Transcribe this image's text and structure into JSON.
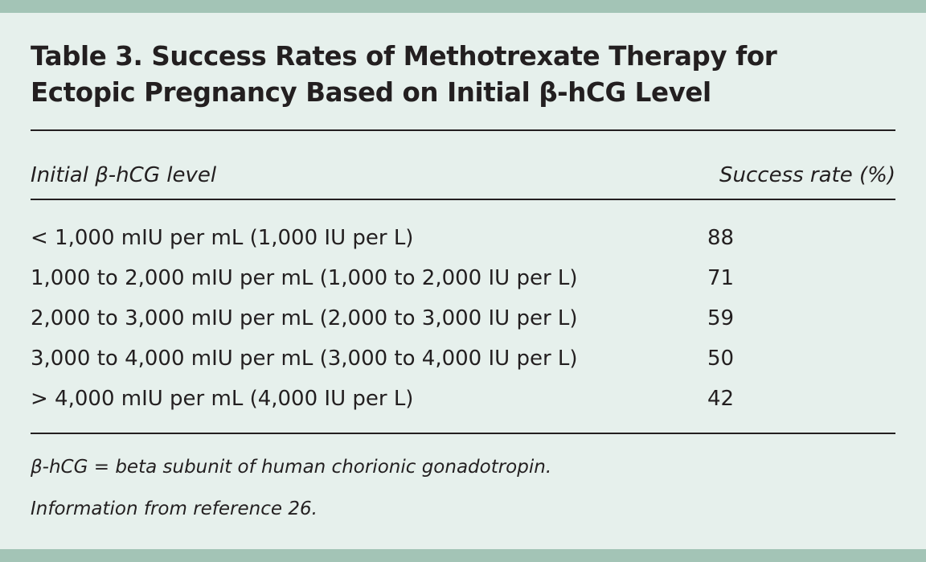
{
  "table": {
    "title_line1": "Table 3. Success Rates of Methotrexate Therapy for",
    "title_line2": "Ectopic Pregnancy Based on Initial β-hCG Level",
    "columns": [
      "Initial β-hCG level",
      "Success rate (%)"
    ],
    "rows": [
      {
        "level": "< 1,000 mIU per mL (1,000 IU per L)",
        "rate": "88"
      },
      {
        "level": "1,000 to 2,000 mIU per mL (1,000 to 2,000 IU per L)",
        "rate": "71"
      },
      {
        "level": "2,000 to 3,000 mIU per mL (2,000 to 3,000 IU per L)",
        "rate": "59"
      },
      {
        "level": "3,000 to 4,000 mIU per mL (3,000 to 4,000 IU per L)",
        "rate": "50"
      },
      {
        "level": "> 4,000 mIU per mL (4,000 IU per L)",
        "rate": "42"
      }
    ],
    "footnotes": [
      "β-hCG = beta subunit of human chorionic gonadotropin.",
      "Information from reference 26."
    ]
  },
  "colors": {
    "background": "#e6f0ec",
    "band": "#a3c4b6",
    "text": "#231f20"
  }
}
